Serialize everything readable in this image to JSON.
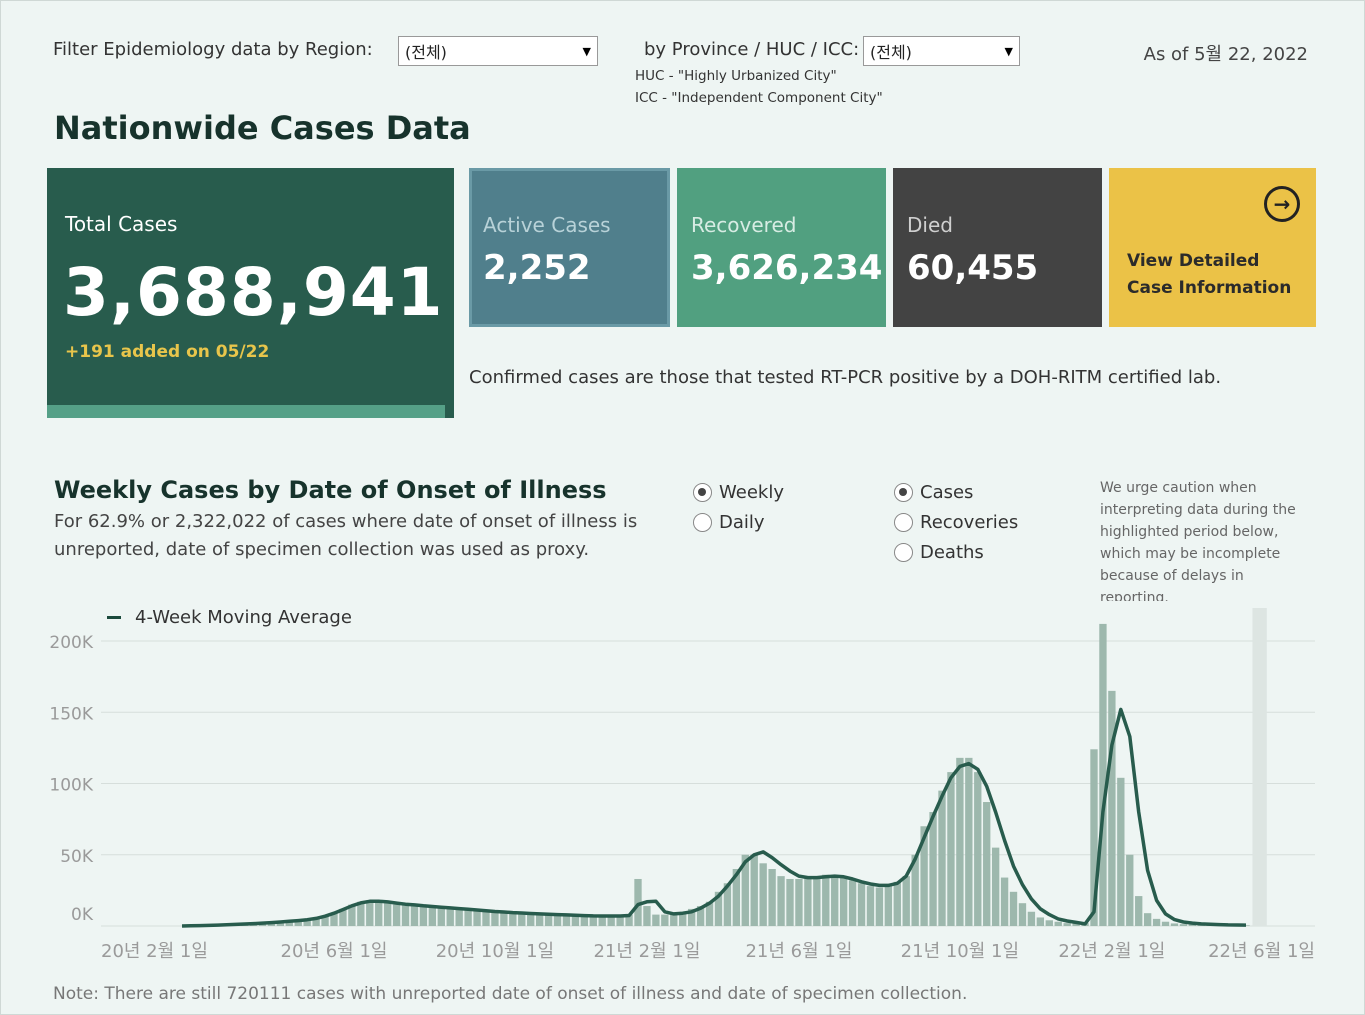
{
  "filters": {
    "region_label": "Filter Epidemiology data by Region:",
    "region_value": "(전체)",
    "province_label": "by Province / HUC / ICC:",
    "province_value": "(전체)",
    "huc_note": "HUC - \"Highly Urbanized City\"",
    "icc_note": "ICC - \"Independent Component City\"",
    "as_of": "As of 5월 22, 2022"
  },
  "title": "Nationwide Cases Data",
  "kpis": {
    "total_label": "Total Cases",
    "total_value": "3,688,941",
    "total_added": "+191 added on 05/22",
    "active_label": "Active Cases",
    "active_value": "2,252",
    "recovered_label": "Recovered",
    "recovered_value": "3,626,234",
    "died_label": "Died",
    "died_value": "60,455",
    "detail_line1": "View Detailed",
    "detail_line2": "Case Information",
    "confirm_note": "Confirmed cases are those that tested RT-PCR positive by a DOH-RITM certified lab."
  },
  "weekly": {
    "title": "Weekly Cases by Date of Onset of Illness",
    "sub_line1": "For 62.9% or 2,322,022 of cases where date of onset of illness is",
    "sub_line2": "unreported, date of specimen collection was used as proxy.",
    "period_options": [
      "Weekly",
      "Daily"
    ],
    "period_selected": "Weekly",
    "metric_options": [
      "Cases",
      "Recoveries",
      "Deaths"
    ],
    "metric_selected": "Cases",
    "caution": "We urge caution when interpreting data during the highlighted period below, which may be incomplete because of delays in reporting.",
    "legend": "4-Week Moving Average",
    "footnote": "Note: There are still 720111 cases with unreported date of onset of illness and date of specimen collection."
  },
  "colors": {
    "bar": "#9db8ad",
    "line": "#285c4d",
    "highlight": "#dde5e2"
  },
  "chart_data": {
    "type": "bar",
    "title": "Weekly Cases by Date of Onset of Illness",
    "xlabel": "",
    "ylabel": "",
    "ylim": [
      0,
      210000
    ],
    "yticks": [
      0,
      50000,
      100000,
      150000,
      200000
    ],
    "ytick_labels": [
      "0K",
      "50K",
      "100K",
      "150K",
      "200K"
    ],
    "xtick_labels": [
      "20년 2월 1일",
      "20년 6월 1일",
      "20년 10월 1일",
      "21년 2월 1일",
      "21년 6월 1일",
      "21년 10월 1일",
      "22년 2월 1일",
      "22년 6월 1일"
    ],
    "xtick_week_index": [
      0,
      17,
      35,
      52,
      69,
      87,
      104,
      121
    ],
    "highlight_weeks": [
      120,
      121
    ],
    "series": [
      {
        "name": "Weekly Cases",
        "values": [
          0,
          200,
          400,
          600,
          800,
          1000,
          1200,
          1500,
          1800,
          2200,
          2600,
          3000,
          3500,
          4000,
          4500,
          5500,
          7000,
          9000,
          12000,
          15000,
          17000,
          18000,
          17500,
          16000,
          15000,
          14500,
          14000,
          14000,
          13500,
          13000,
          12500,
          12000,
          11500,
          11000,
          10500,
          10000,
          9500,
          9000,
          9000,
          8500,
          8500,
          8000,
          8000,
          7500,
          7500,
          7000,
          7000,
          7000,
          7000,
          7000,
          8000,
          33000,
          14000,
          8000,
          8000,
          8000,
          9000,
          12000,
          14000,
          17000,
          24000,
          30000,
          40000,
          50000,
          50000,
          44000,
          40000,
          35000,
          33000,
          33000,
          34000,
          35000,
          36000,
          35000,
          34000,
          32000,
          30000,
          28000,
          27000,
          29000,
          31000,
          35000,
          50000,
          70000,
          80000,
          95000,
          108000,
          118000,
          118000,
          108000,
          87000,
          55000,
          34000,
          24000,
          16000,
          10000,
          6000,
          4000,
          3000,
          2000,
          1800,
          2000,
          124000,
          212000,
          165000,
          104000,
          50000,
          21000,
          9000,
          5000,
          3000,
          1800,
          1300,
          1000,
          900,
          800,
          700,
          600,
          500,
          500
        ],
        "style": "bar"
      },
      {
        "name": "4-Week Moving Average",
        "values": [
          0,
          150,
          300,
          450,
          650,
          850,
          1100,
          1400,
          1700,
          2000,
          2400,
          2800,
          3300,
          3800,
          4400,
          5300,
          6900,
          9000,
          11500,
          14200,
          16200,
          17300,
          17400,
          16900,
          16100,
          15300,
          14800,
          14200,
          13700,
          13200,
          12700,
          12200,
          11700,
          11200,
          10700,
          10200,
          9800,
          9400,
          9100,
          8800,
          8500,
          8300,
          8000,
          7800,
          7500,
          7300,
          7100,
          7000,
          7000,
          7000,
          7400,
          15000,
          17000,
          17300,
          10000,
          8500,
          9000,
          10000,
          12500,
          16000,
          21000,
          28000,
          36000,
          45000,
          50000,
          52000,
          48000,
          43000,
          38500,
          35000,
          34000,
          34000,
          34500,
          35000,
          34500,
          33000,
          31000,
          29500,
          28500,
          28500,
          30000,
          35000,
          47000,
          62000,
          77000,
          91000,
          104000,
          112000,
          114000,
          110000,
          98000,
          80000,
          60000,
          42000,
          29000,
          19000,
          12000,
          8000,
          5000,
          3500,
          2500,
          1500,
          10000,
          80000,
          127000,
          152000,
          133000,
          80000,
          39000,
          18000,
          8500,
          4500,
          2800,
          2000,
          1500,
          1200,
          1000,
          800,
          700,
          600
        ],
        "style": "line"
      }
    ]
  }
}
